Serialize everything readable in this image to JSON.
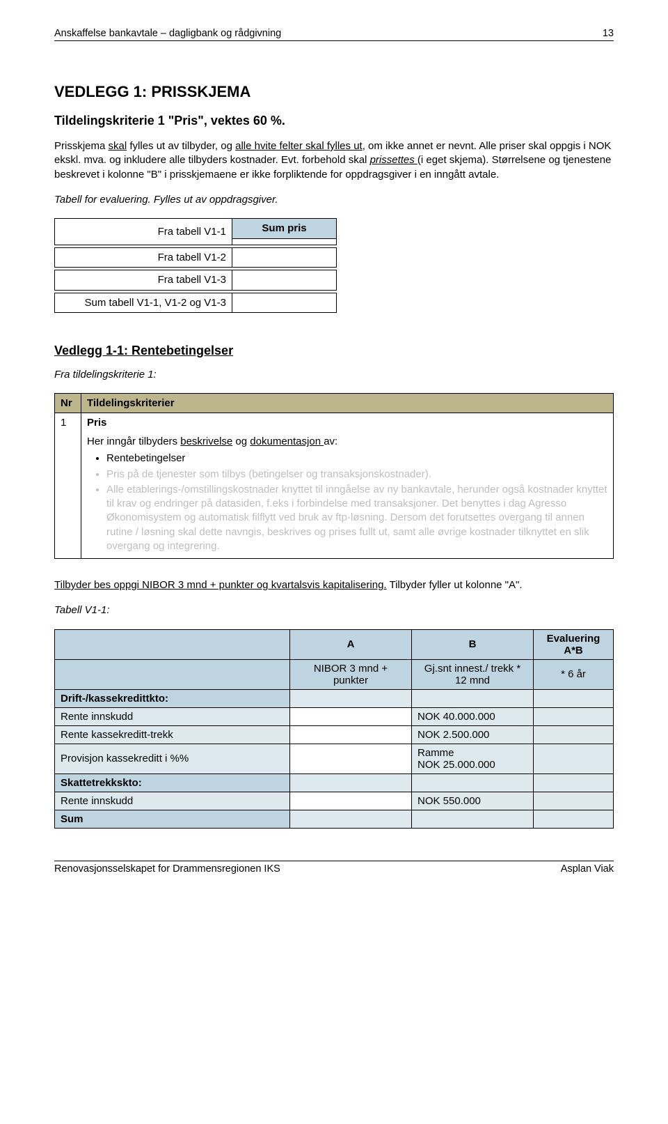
{
  "header": {
    "title": "Anskaffelse bankavtale – dagligbank og rådgivning",
    "page_no": "13"
  },
  "h1": "VEDLEGG 1: PRISSKJEMA",
  "h2": "Tildelingskriterie 1 \"Pris\", vektes 60 %.",
  "intro_p1_a": "Prisskjema ",
  "intro_p1_b": "skal",
  "intro_p1_c": " fylles ut av tilbyder, og ",
  "intro_p1_d": "alle hvite felter skal fylles ut",
  "intro_p1_e": ", om ikke annet er nevnt. Alle priser skal oppgis i NOK ekskl. mva. og inkludere alle tilbyders kostnader. Evt. forbehold skal ",
  "intro_p1_f": "prissettes ",
  "intro_p1_g": "(i eget skjema). Størrelsene og tjenestene beskrevet i kolonne \"B\" i prisskjemaene er ikke forpliktende for oppdragsgiver i en inngått avtale.",
  "intro_p2": "Tabell for evaluering. Fylles ut av oppdragsgiver.",
  "sumtable": {
    "header": "Sum pris",
    "r1": "Fra tabell V1-1",
    "r2": "Fra tabell V1-2",
    "r3": "Fra tabell V1-3",
    "r4": "Sum tabell V1-1, V1-2 og V1-3"
  },
  "section_hd": "Vedlegg 1-1: Rentebetingelser",
  "from_crit": "Fra tildelingskriterie 1:",
  "criteria": {
    "col_nr": "Nr",
    "col_k": "Tildelingskriterier",
    "nr": "1",
    "pris": "Pris",
    "line_a": "Her inngår tilbyders ",
    "line_b": "beskrivelse",
    "line_c": " og ",
    "line_d": "dokumentasjon ",
    "line_e": "av:",
    "b1": "Rentebetingelser",
    "b2": "Pris på de tjenester som tilbys (betingelser og transaksjonskostnader).",
    "b3": "Alle etablerings-/omstillingskostnader knyttet til inngåelse av ny bankavtale, herunder også kostnader knyttet til krav og endringer på datasiden, f.eks i forbindelse med transaksjoner. Det benyttes i dag Agresso Økonomisystem og automatisk filflytt ved bruk av ftp-løsning. Dersom det forutsettes overgang til annen rutine / løsning skal dette navngis, beskrives og prises fullt ut, samt alle øvrige kostnader tilknyttet en slik overgang og integrering."
  },
  "instr_a": "Tilbyder bes oppgi NIBOR 3 mnd + punkter og kvartalsvis kapitalisering.",
  "instr_b": " Tilbyder fyller ut kolonne \"A\".",
  "table_label": "Tabell V1-1:",
  "ptable": {
    "A": "A",
    "B": "B",
    "E": "Evaluering A*B",
    "sub_a": "NIBOR 3 mnd + punkter",
    "sub_b": "Gj.snt innest./ trekk * 12 mnd",
    "sub_e": "* 6 år",
    "sect1": "Drift-/kassekredittkto:",
    "r1_l": "Rente innskudd",
    "r1_b": "NOK 40.000.000",
    "r2_l": "Rente kassekreditt-trekk",
    "r2_b": "NOK   2.500.000",
    "r3_l": "Provisjon kassekreditt i %%",
    "r3_b_a": "Ramme",
    "r3_b_b": "NOK 25.000.000",
    "sect2": "Skattetrekkskto:",
    "r4_l": "Rente innskudd",
    "r4_b": "NOK      550.000",
    "sum": "Sum"
  },
  "footer": {
    "left": "Renovasjonsselskapet for Drammensregionen IKS",
    "right": "Asplan Viak"
  },
  "colors": {
    "tan": "#bdb58c",
    "blue_dark": "#bed4e0",
    "blue_light": "#dde9ef",
    "gray_text": "#bfbfbf"
  }
}
